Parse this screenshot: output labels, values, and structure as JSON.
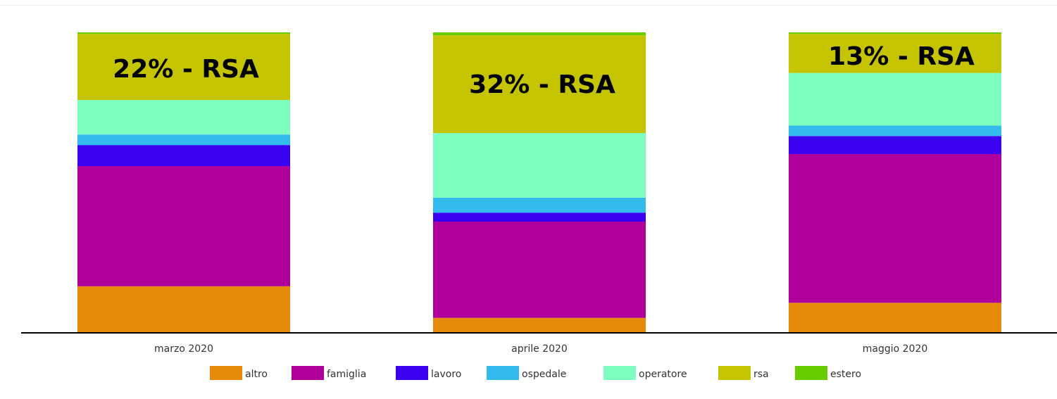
{
  "chart_data": {
    "type": "bar",
    "stacked": true,
    "normalized": true,
    "categories": [
      "marzo 2020",
      "aprile 2020",
      "maggio 2020"
    ],
    "series": [
      {
        "name": "altro",
        "color": "#E68A0A",
        "values": [
          15.5,
          5,
          10
        ]
      },
      {
        "name": "famiglia",
        "color": "#B0009B",
        "values": [
          40,
          32,
          49.5
        ]
      },
      {
        "name": "lavoro",
        "color": "#3A00F0",
        "values": [
          7,
          3,
          6
        ]
      },
      {
        "name": "ospedale",
        "color": "#33BBEE",
        "values": [
          3.5,
          5,
          3.5
        ]
      },
      {
        "name": "operatore",
        "color": "#7FFFBF",
        "values": [
          11.5,
          21.5,
          17.5
        ]
      },
      {
        "name": "rsa",
        "color": "#C4C400",
        "values": [
          22,
          32.5,
          13
        ]
      },
      {
        "name": "estero",
        "color": "#66CC00",
        "values": [
          0.5,
          1,
          0.5
        ]
      }
    ],
    "annotations": [
      "22% - RSA",
      "32% - RSA",
      "13% - RSA"
    ],
    "ylim": [
      0,
      100
    ],
    "legend": "bottom",
    "grid": false
  }
}
